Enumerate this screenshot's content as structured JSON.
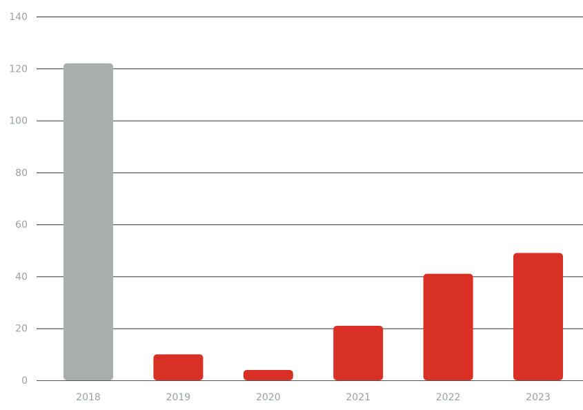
{
  "chart_data": {
    "type": "bar",
    "title": "",
    "xlabel": "",
    "ylabel": "",
    "categories": [
      "2018",
      "2019",
      "2020",
      "2021",
      "2022",
      "2023"
    ],
    "values": [
      122,
      10,
      4,
      21,
      41,
      49
    ],
    "bar_colors": [
      "#a9adac",
      "#d93025",
      "#d93025",
      "#d93025",
      "#d93025",
      "#d93025"
    ],
    "ylim": [
      0,
      140
    ],
    "yticks": [
      0,
      20,
      40,
      60,
      80,
      100,
      120,
      140
    ],
    "grid": true,
    "legend": "none"
  }
}
